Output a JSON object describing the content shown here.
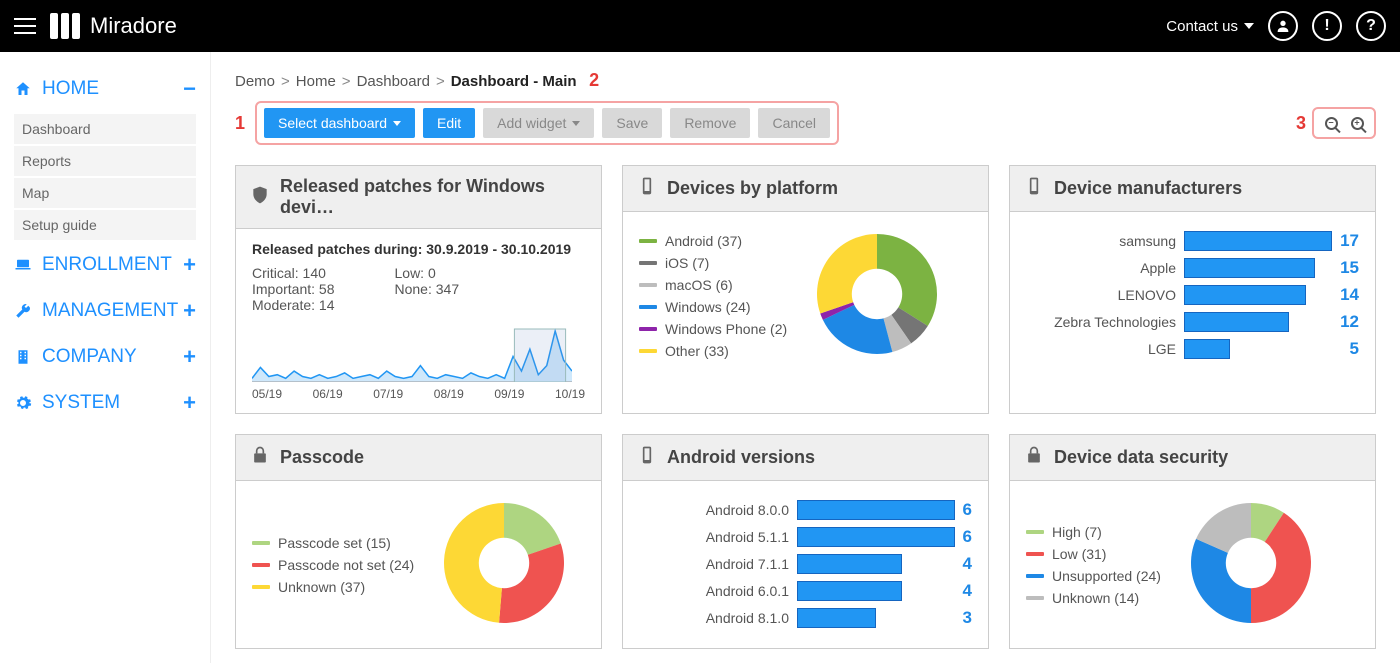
{
  "colors": {
    "blue": "#2196f3",
    "barFill": "#2196f3",
    "barBorder": "#1565c0",
    "valBlue": "#1e88e5",
    "annot": "#e53935"
  },
  "topbar": {
    "brand": "Miradore",
    "contact": "Contact us"
  },
  "sidebar": {
    "sections": [
      {
        "label": "HOME",
        "icon": "home",
        "expand": "minus",
        "items": [
          "Dashboard",
          "Reports",
          "Map",
          "Setup guide"
        ]
      },
      {
        "label": "ENROLLMENT",
        "icon": "laptop",
        "expand": "plus"
      },
      {
        "label": "MANAGEMENT",
        "icon": "wrench",
        "expand": "plus"
      },
      {
        "label": "COMPANY",
        "icon": "building",
        "expand": "plus"
      },
      {
        "label": "SYSTEM",
        "icon": "gear",
        "expand": "plus"
      }
    ]
  },
  "breadcrumbs": [
    "Demo",
    "Home",
    "Dashboard",
    "Dashboard - Main"
  ],
  "annotations": {
    "a1": "1",
    "a2": "2",
    "a3": "3"
  },
  "toolbar": {
    "select": "Select dashboard",
    "edit": "Edit",
    "add": "Add widget",
    "save": "Save",
    "remove": "Remove",
    "cancel": "Cancel"
  },
  "cards": {
    "patches": {
      "title": "Released patches for Windows devi…",
      "subtitle": "Released patches during: 30.9.2019 - 30.10.2019",
      "stats": [
        {
          "k": "Critical:",
          "v": "140"
        },
        {
          "k": "Important:",
          "v": "58"
        },
        {
          "k": "Moderate:",
          "v": "14"
        },
        {
          "k": "Low:",
          "v": "0"
        },
        {
          "k": "None:",
          "v": "347"
        }
      ],
      "spark": {
        "xticks": [
          "05/19",
          "06/19",
          "07/19",
          "08/19",
          "09/19",
          "10/19"
        ],
        "points": [
          2,
          8,
          3,
          4,
          2,
          6,
          3,
          2,
          4,
          2,
          3,
          5,
          2,
          3,
          4,
          2,
          6,
          3,
          2,
          3,
          9,
          3,
          2,
          4,
          3,
          2,
          5,
          3,
          2,
          4,
          2,
          14,
          6,
          18,
          4,
          9,
          28,
          12,
          6
        ],
        "stroke": "#2196f3",
        "fill": "#cfe8fb",
        "height": 55
      }
    },
    "platform": {
      "title": "Devices by platform",
      "legend": [
        {
          "label": "Android (37)",
          "color": "#7cb342",
          "value": 37
        },
        {
          "label": "iOS (7)",
          "color": "#757575",
          "value": 7
        },
        {
          "label": "macOS (6)",
          "color": "#bdbdbd",
          "value": 6
        },
        {
          "label": "Windows (24)",
          "color": "#1e88e5",
          "value": 24
        },
        {
          "label": "Windows Phone (2)",
          "color": "#8e24aa",
          "value": 2
        },
        {
          "label": "Other (33)",
          "color": "#fdd835",
          "value": 33
        }
      ],
      "donut": {
        "inner": 0.42
      }
    },
    "manufacturers": {
      "title": "Device manufacturers",
      "max": 17,
      "bars": [
        {
          "label": "samsung",
          "value": 17
        },
        {
          "label": "Apple",
          "value": 15
        },
        {
          "label": "LENOVO",
          "value": 14
        },
        {
          "label": "Zebra Technologies",
          "value": 12
        },
        {
          "label": "LGE",
          "value": 5
        }
      ]
    },
    "passcode": {
      "title": "Passcode",
      "legend": [
        {
          "label": "Passcode set (15)",
          "color": "#aed581",
          "value": 15
        },
        {
          "label": "Passcode not set (24)",
          "color": "#ef5350",
          "value": 24
        },
        {
          "label": "Unknown (37)",
          "color": "#fdd835",
          "value": 37
        }
      ],
      "donut": {
        "inner": 0.42
      }
    },
    "android": {
      "title": "Android versions",
      "max": 6,
      "bars": [
        {
          "label": "Android 8.0.0",
          "value": 6
        },
        {
          "label": "Android 5.1.1",
          "value": 6
        },
        {
          "label": "Android 7.1.1",
          "value": 4
        },
        {
          "label": "Android 6.0.1",
          "value": 4
        },
        {
          "label": "Android 8.1.0",
          "value": 3
        }
      ]
    },
    "security": {
      "title": "Device data security",
      "legend": [
        {
          "label": "High (7)",
          "color": "#aed581",
          "value": 7
        },
        {
          "label": "Low (31)",
          "color": "#ef5350",
          "value": 31
        },
        {
          "label": "Unsupported (24)",
          "color": "#1e88e5",
          "value": 24
        },
        {
          "label": "Unknown (14)",
          "color": "#bdbdbd",
          "value": 14
        }
      ],
      "donut": {
        "inner": 0.42
      }
    }
  }
}
